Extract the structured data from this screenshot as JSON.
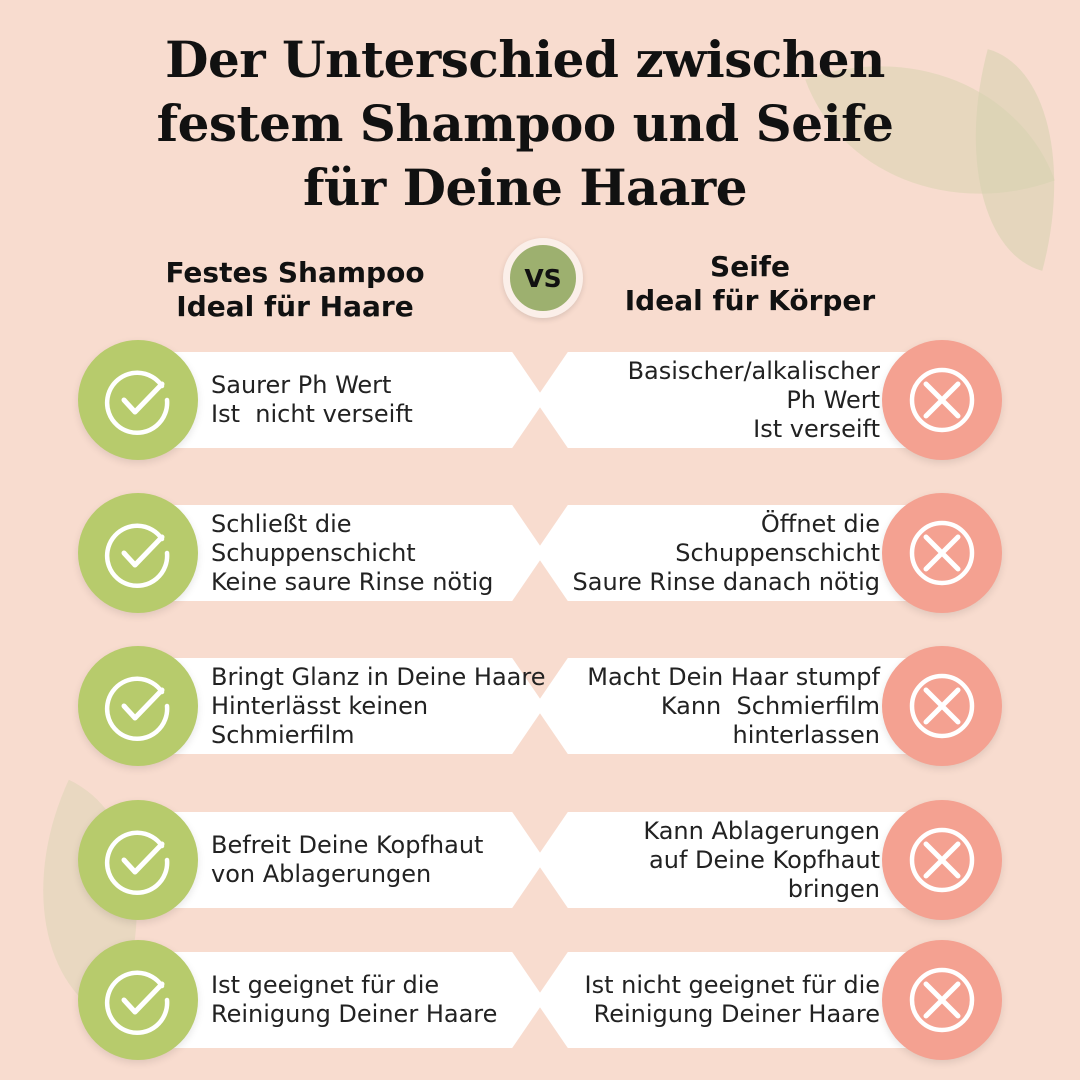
{
  "title": [
    "Der Unterschied zwischen",
    "festem Shampoo und Seife",
    "für Deine Haare"
  ],
  "left_header": [
    "Festes Shampoo",
    "Ideal für Haare"
  ],
  "right_header": [
    "Seife",
    "Ideal für Körper"
  ],
  "vs_label": "VS",
  "colors": {
    "background": "#f8dccf",
    "positive": "#b7cb6c",
    "negative": "#f4a191"
  },
  "icons": {
    "left": "check-circle-icon",
    "right": "x-circle-icon"
  },
  "rows": [
    {
      "left": "Saurer Ph Wert\nIst  nicht verseift",
      "right": "Basischer/alkalischer\nPh Wert\nIst verseift"
    },
    {
      "left": "Schließt die\nSchuppenschicht\nKeine saure Rinse nötig",
      "right": "Öffnet die\nSchuppenschicht\nSaure Rinse danach nötig"
    },
    {
      "left": "Bringt Glanz in Deine Haare\nHinterlässt keinen\nSchmierfilm",
      "right": "Macht Dein Haar stumpf\nKann  Schmierfilm\nhinterlassen"
    },
    {
      "left": "Befreit Deine Kopfhaut\nvon Ablagerungen",
      "right": "Kann Ablagerungen\nauf Deine Kopfhaut\nbringen"
    },
    {
      "left": "Ist geeignet für die\nReinigung Deiner Haare",
      "right": "Ist nicht geeignet für die\nReinigung Deiner Haare"
    }
  ]
}
